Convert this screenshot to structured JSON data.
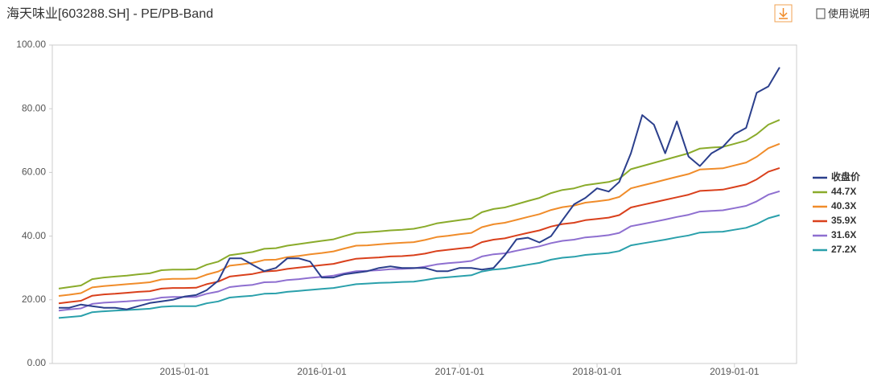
{
  "header": {
    "title": "海天味业[603288.SH] - PE/PB-Band",
    "help": "使用说明"
  },
  "chart_data": {
    "type": "line",
    "x": [
      "2014-02-01",
      "2014-03-01",
      "2014-04-01",
      "2014-05-01",
      "2014-06-01",
      "2014-07-01",
      "2014-08-01",
      "2014-09-01",
      "2014-10-01",
      "2014-11-01",
      "2014-12-01",
      "2015-01-01",
      "2015-02-01",
      "2015-03-01",
      "2015-04-01",
      "2015-05-01",
      "2015-06-01",
      "2015-07-01",
      "2015-08-01",
      "2015-09-01",
      "2015-10-01",
      "2015-11-01",
      "2015-12-01",
      "2016-01-01",
      "2016-02-01",
      "2016-03-01",
      "2016-04-01",
      "2016-05-01",
      "2016-06-01",
      "2016-07-01",
      "2016-08-01",
      "2016-09-01",
      "2016-10-01",
      "2016-11-01",
      "2016-12-01",
      "2017-01-01",
      "2017-02-01",
      "2017-03-01",
      "2017-04-01",
      "2017-05-01",
      "2017-06-01",
      "2017-07-01",
      "2017-08-01",
      "2017-09-01",
      "2017-10-01",
      "2017-11-01",
      "2017-12-01",
      "2018-01-01",
      "2018-02-01",
      "2018-03-01",
      "2018-04-01",
      "2018-05-01",
      "2018-06-01",
      "2018-07-01",
      "2018-08-01",
      "2018-09-01",
      "2018-10-01",
      "2018-11-01",
      "2018-12-01",
      "2019-01-01",
      "2019-02-01",
      "2019-03-01",
      "2019-04-01",
      "2019-05-01"
    ],
    "xlim": [
      "2014-01-15",
      "2019-06-15"
    ],
    "xticks": [
      "2015-01-01",
      "2016-01-01",
      "2017-01-01",
      "2018-01-01",
      "2019-01-01"
    ],
    "ylim": [
      0,
      100
    ],
    "yticks": [
      {
        "value": 0,
        "label": "0.00"
      },
      {
        "value": 20,
        "label": "20.00"
      },
      {
        "value": 40,
        "label": "40.00"
      },
      {
        "value": 60,
        "label": "60.00"
      },
      {
        "value": 80,
        "label": "80.00"
      },
      {
        "value": 100,
        "label": "100.00"
      }
    ],
    "grid": false,
    "legend": "right",
    "series": [
      {
        "name": "收盘价",
        "color": "#2b3f8c",
        "values": [
          17.5,
          17.5,
          18.5,
          18,
          17.5,
          17.5,
          17,
          18,
          19,
          19.5,
          20,
          21,
          21.5,
          23,
          26,
          33,
          33,
          31,
          29,
          30,
          33,
          33,
          32,
          27,
          27,
          28,
          28.5,
          29,
          30,
          30.5,
          30,
          30,
          30,
          29,
          29,
          30,
          30,
          29.5,
          30,
          34,
          39,
          39.5,
          38,
          40,
          45,
          50,
          52,
          55,
          54,
          57,
          66,
          78,
          75,
          66,
          76,
          65,
          62,
          66,
          68,
          72,
          74,
          85,
          87,
          93
        ]
      },
      {
        "name": "44.7X",
        "color": "#8aab2b",
        "values": [
          23.5,
          24,
          24.5,
          26.5,
          27,
          27.3,
          27.6,
          28,
          28.3,
          29.3,
          29.5,
          29.5,
          29.6,
          31,
          32,
          34,
          34.5,
          35,
          36,
          36.2,
          37,
          37.5,
          38,
          38.5,
          39,
          40,
          41,
          41.2,
          41.5,
          41.8,
          42,
          42.3,
          43,
          44,
          44.5,
          45,
          45.5,
          47.5,
          48.5,
          49,
          50,
          51,
          52,
          53.5,
          54.5,
          55,
          56,
          56.5,
          57,
          58,
          61,
          62,
          63,
          64,
          65,
          66,
          67.5,
          67.8,
          68,
          69,
          70,
          72,
          75,
          76.5
        ]
      },
      {
        "name": "40.3X",
        "color": "#f08c2a",
        "values": [
          21.2,
          21.6,
          22.1,
          23.9,
          24.3,
          24.6,
          24.9,
          25.2,
          25.5,
          26.4,
          26.6,
          26.6,
          26.7,
          27.9,
          28.9,
          30.7,
          31.1,
          31.6,
          32.5,
          32.6,
          33.4,
          33.8,
          34.3,
          34.7,
          35.2,
          36.1,
          37.0,
          37.1,
          37.4,
          37.7,
          37.9,
          38.1,
          38.8,
          39.7,
          40.1,
          40.6,
          41.0,
          42.8,
          43.7,
          44.2,
          45.1,
          46.0,
          46.9,
          48.2,
          49.1,
          49.6,
          50.5,
          50.9,
          51.4,
          52.3,
          55.0,
          55.9,
          56.8,
          57.7,
          58.6,
          59.5,
          60.9,
          61.1,
          61.3,
          62.2,
          63.1,
          64.9,
          67.6,
          69.0
        ]
      },
      {
        "name": "35.9X",
        "color": "#d9401c",
        "values": [
          18.9,
          19.3,
          19.7,
          21.3,
          21.7,
          21.9,
          22.2,
          22.5,
          22.7,
          23.5,
          23.7,
          23.7,
          23.8,
          24.9,
          25.7,
          27.3,
          27.7,
          28.1,
          28.9,
          29.1,
          29.7,
          30.1,
          30.5,
          30.9,
          31.3,
          32.1,
          32.9,
          33.1,
          33.3,
          33.6,
          33.7,
          34.0,
          34.5,
          35.3,
          35.7,
          36.1,
          36.5,
          38.1,
          38.9,
          39.3,
          40.2,
          41.0,
          41.8,
          43.0,
          43.8,
          44.2,
          45.0,
          45.4,
          45.8,
          46.6,
          49.0,
          49.8,
          50.6,
          51.4,
          52.2,
          53.0,
          54.2,
          54.4,
          54.6,
          55.4,
          56.2,
          57.8,
          60.2,
          61.4
        ]
      },
      {
        "name": "31.6X",
        "color": "#8e6fd0",
        "values": [
          16.6,
          17.0,
          17.3,
          18.7,
          19.1,
          19.3,
          19.5,
          19.8,
          20.0,
          20.7,
          20.9,
          20.9,
          20.9,
          21.9,
          22.6,
          24.0,
          24.4,
          24.7,
          25.5,
          25.6,
          26.2,
          26.5,
          26.9,
          27.2,
          27.6,
          28.3,
          29.0,
          29.1,
          29.3,
          29.6,
          29.7,
          29.9,
          30.4,
          31.1,
          31.5,
          31.8,
          32.2,
          33.6,
          34.3,
          34.6,
          35.4,
          36.1,
          36.8,
          37.8,
          38.5,
          38.9,
          39.6,
          39.9,
          40.3,
          41.0,
          43.1,
          43.8,
          44.5,
          45.2,
          46.0,
          46.7,
          47.7,
          47.9,
          48.1,
          48.8,
          49.5,
          50.9,
          53.0,
          54.1
        ]
      },
      {
        "name": "27.2X",
        "color": "#2aa0ab",
        "values": [
          14.3,
          14.6,
          14.9,
          16.1,
          16.4,
          16.6,
          16.8,
          17.0,
          17.2,
          17.8,
          18.0,
          18.0,
          18.0,
          18.9,
          19.5,
          20.7,
          21.0,
          21.3,
          21.9,
          22.0,
          22.5,
          22.8,
          23.1,
          23.4,
          23.7,
          24.3,
          24.9,
          25.1,
          25.3,
          25.4,
          25.6,
          25.7,
          26.2,
          26.8,
          27.1,
          27.4,
          27.7,
          28.9,
          29.5,
          29.8,
          30.4,
          31.0,
          31.6,
          32.6,
          33.2,
          33.5,
          34.1,
          34.4,
          34.7,
          35.3,
          37.1,
          37.7,
          38.3,
          38.9,
          39.6,
          40.2,
          41.1,
          41.3,
          41.4,
          42.0,
          42.6,
          43.8,
          45.6,
          46.6
        ]
      }
    ]
  }
}
